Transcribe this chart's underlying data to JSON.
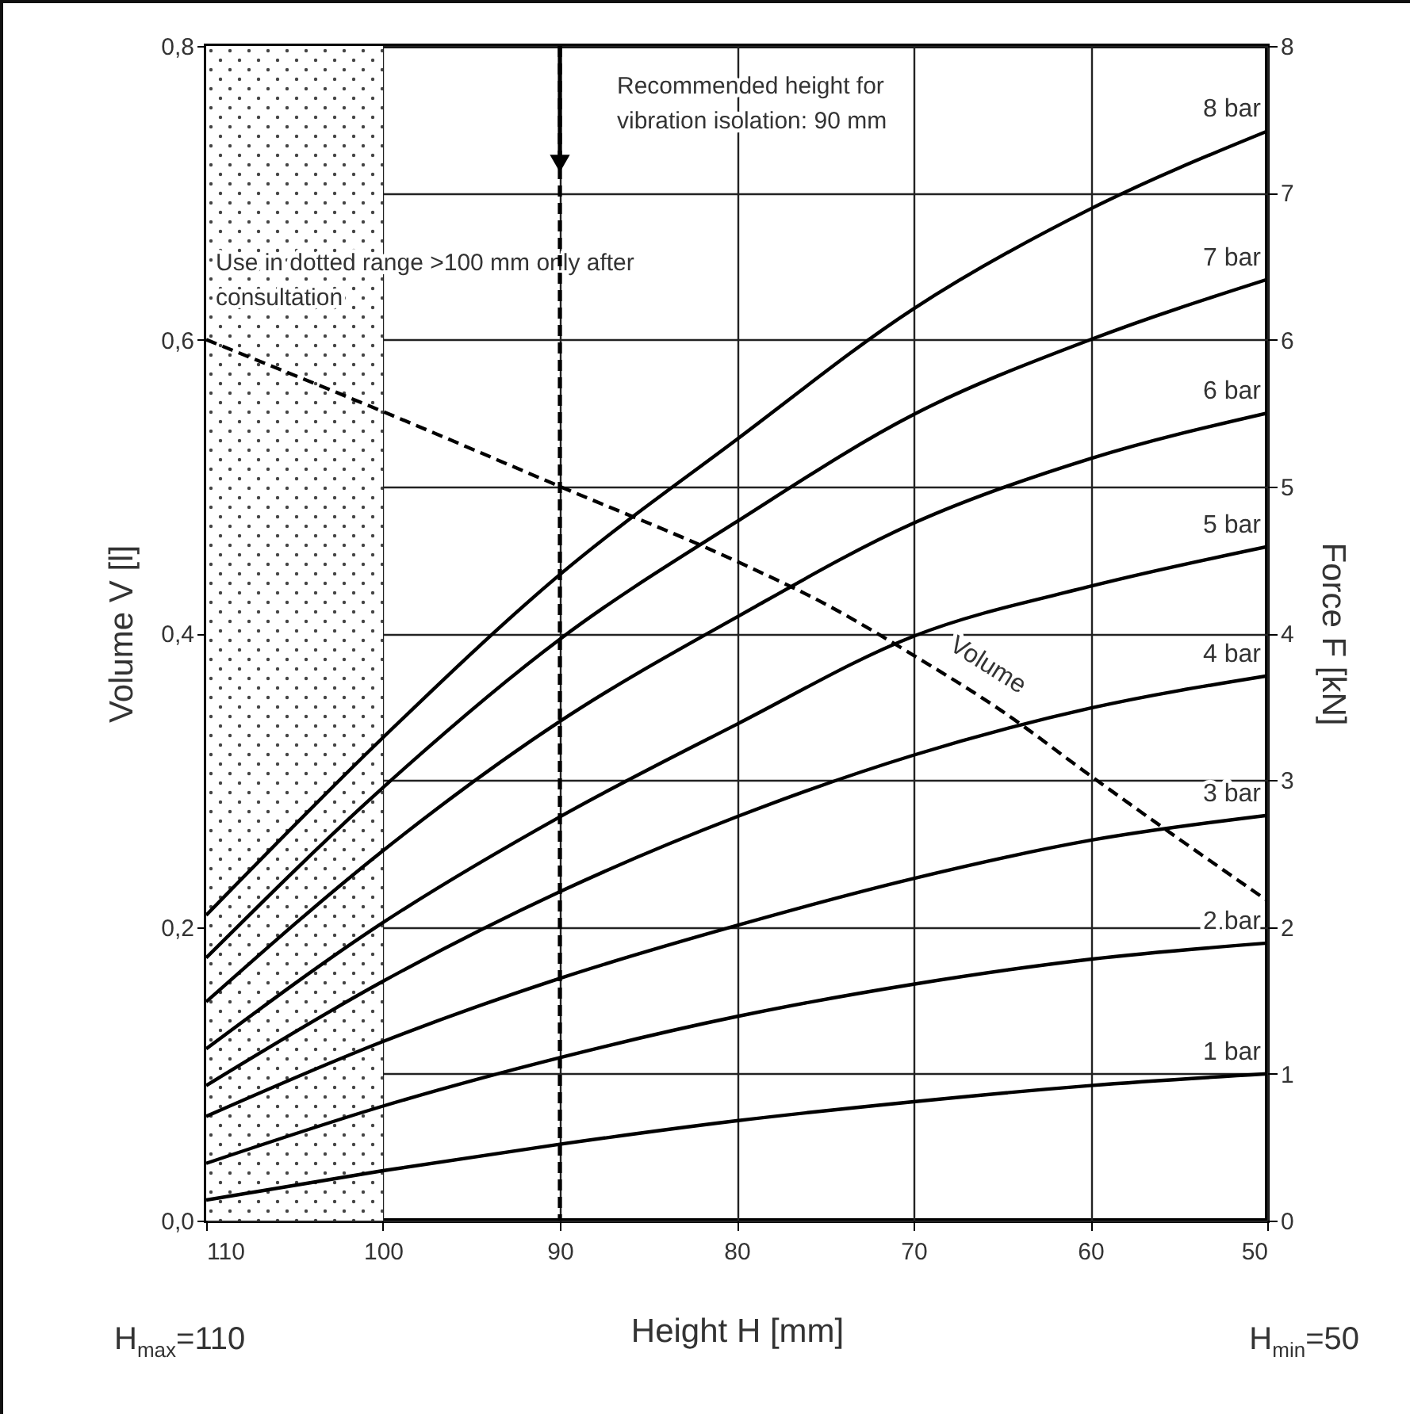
{
  "chart_data": {
    "type": "line",
    "xlabel": "Height H [mm]",
    "ylabel": "Volume V [l]",
    "y2label": "Force F [kN]",
    "x": [
      110,
      100,
      90,
      80,
      70,
      60,
      50
    ],
    "xlim": [
      110,
      50
    ],
    "xticks": [
      110,
      100,
      90,
      80,
      70,
      60,
      50
    ],
    "ylim": [
      0,
      0.8
    ],
    "yticks": [
      {
        "value": 0,
        "label": "0,0"
      },
      {
        "value": 0.2,
        "label": "0,2"
      },
      {
        "value": 0.4,
        "label": "0,4"
      },
      {
        "value": 0.6,
        "label": "0,6"
      },
      {
        "value": 0.8,
        "label": "0,8"
      }
    ],
    "y2lim": [
      0,
      8
    ],
    "y2ticks": [
      0,
      1,
      2,
      3,
      4,
      5,
      6,
      7,
      8
    ],
    "grid": true,
    "series": [
      {
        "name": "1 bar",
        "color": "#000000",
        "axis": "y2",
        "values": [
          0.14,
          0.34,
          0.52,
          0.68,
          0.81,
          0.92,
          1.0
        ]
      },
      {
        "name": "2 bar",
        "color": "#000000",
        "axis": "y2",
        "values": [
          0.39,
          0.78,
          1.11,
          1.39,
          1.61,
          1.78,
          1.89
        ]
      },
      {
        "name": "3 bar",
        "color": "#000000",
        "axis": "y2",
        "values": [
          0.71,
          1.22,
          1.65,
          2.01,
          2.33,
          2.59,
          2.76
        ]
      },
      {
        "name": "4 bar",
        "color": "#000000",
        "axis": "y2",
        "values": [
          0.92,
          1.63,
          2.24,
          2.75,
          3.17,
          3.49,
          3.71
        ]
      },
      {
        "name": "5 bar",
        "color": "#000000",
        "axis": "y2",
        "values": [
          1.17,
          2.03,
          2.75,
          3.38,
          3.98,
          4.32,
          4.59
        ]
      },
      {
        "name": "6 bar",
        "color": "#000000",
        "axis": "y2",
        "values": [
          1.49,
          2.52,
          3.4,
          4.11,
          4.75,
          5.19,
          5.5
        ]
      },
      {
        "name": "7 bar",
        "color": "#000000",
        "axis": "y2",
        "values": [
          1.79,
          2.95,
          3.96,
          4.76,
          5.49,
          6.0,
          6.41
        ]
      },
      {
        "name": "8 bar",
        "color": "#000000",
        "axis": "y2",
        "values": [
          2.08,
          3.29,
          4.4,
          5.32,
          6.21,
          6.89,
          7.42
        ]
      },
      {
        "name": "Volume",
        "color": "#000000",
        "axis": "y",
        "line_style": "dashed",
        "x": [
          110,
          100,
          90,
          80,
          75,
          70,
          65,
          60,
          55,
          50
        ],
        "values": [
          0.6,
          0.551,
          0.5,
          0.449,
          0.42,
          0.385,
          0.347,
          0.303,
          0.26,
          0.218
        ]
      }
    ],
    "ref_lines": [
      {
        "axis": "x",
        "value": 90,
        "label": "Recommended height for vibration isolation: 90 mm",
        "line_style": "dashed"
      }
    ],
    "bands": [
      {
        "axis": "x",
        "from": 110,
        "to": 100,
        "label": "Use in dotted range >100 mm only after consultation"
      }
    ],
    "annotations": [
      "H$_{max}$=110",
      "H$_{min}$=50"
    ]
  }
}
